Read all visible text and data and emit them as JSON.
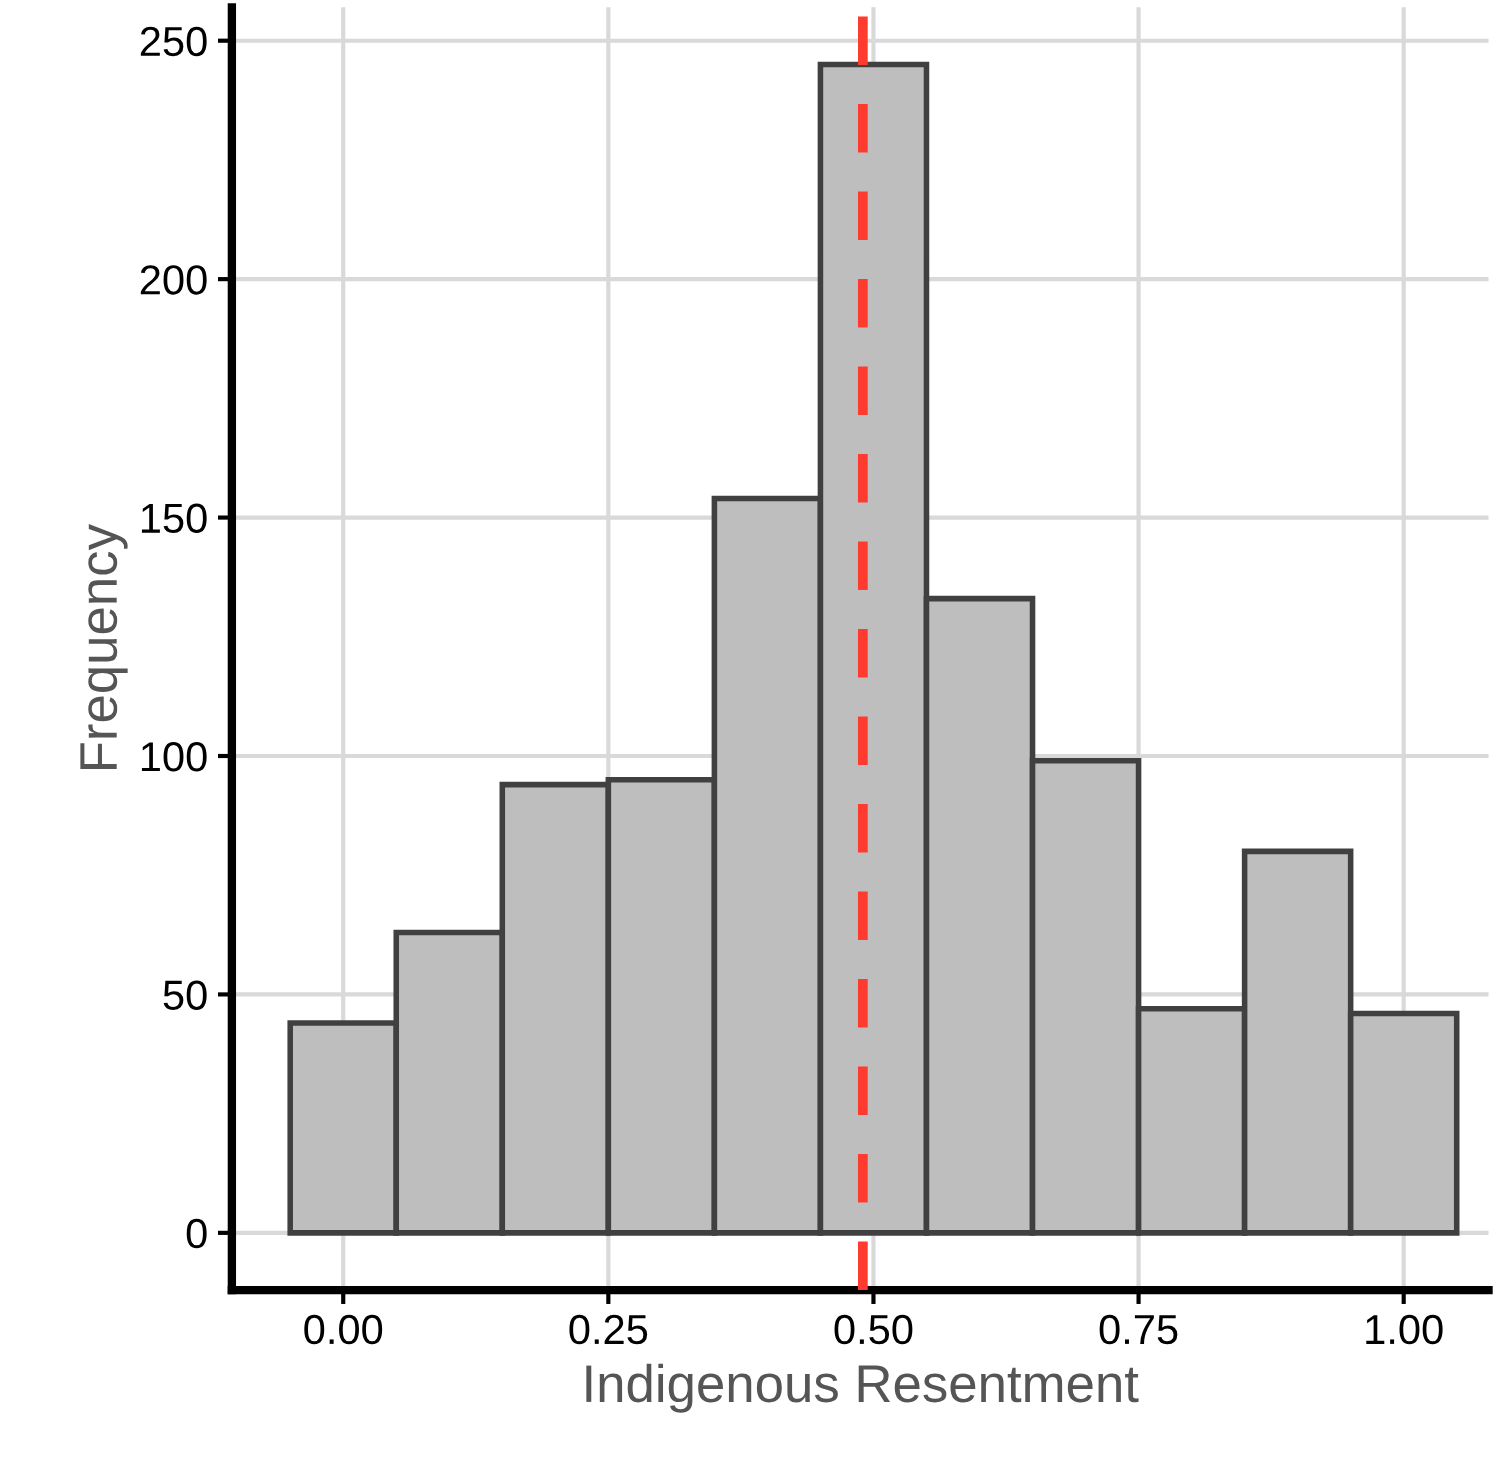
{
  "chart_data": {
    "type": "histogram",
    "xlabel": "Indigenous Resentment",
    "ylabel": "Frequency",
    "bins": [
      -0.05,
      0.05,
      0.15,
      0.25,
      0.35,
      0.45,
      0.55,
      0.65,
      0.75,
      0.85,
      0.95,
      1.05
    ],
    "values": [
      44,
      63,
      94,
      95,
      154,
      245,
      133,
      99,
      47,
      80,
      46
    ],
    "color": "#bebebe",
    "xlim": [
      -0.105,
      1.08
    ],
    "ylim": [
      -12,
      257
    ],
    "xticks": [
      {
        "value": 0,
        "label": "0.00"
      },
      {
        "value": 0.25,
        "label": "0.25"
      },
      {
        "value": 0.5,
        "label": "0.50"
      },
      {
        "value": 0.75,
        "label": "0.75"
      },
      {
        "value": 1,
        "label": "1.00"
      }
    ],
    "yticks": [
      0,
      50,
      100,
      150,
      200,
      250
    ],
    "ref_lines": [
      {
        "axis": "x",
        "value": 0.49,
        "label": null,
        "color": "#ff3b2f",
        "line_style": "dashed"
      }
    ],
    "grid": true
  }
}
